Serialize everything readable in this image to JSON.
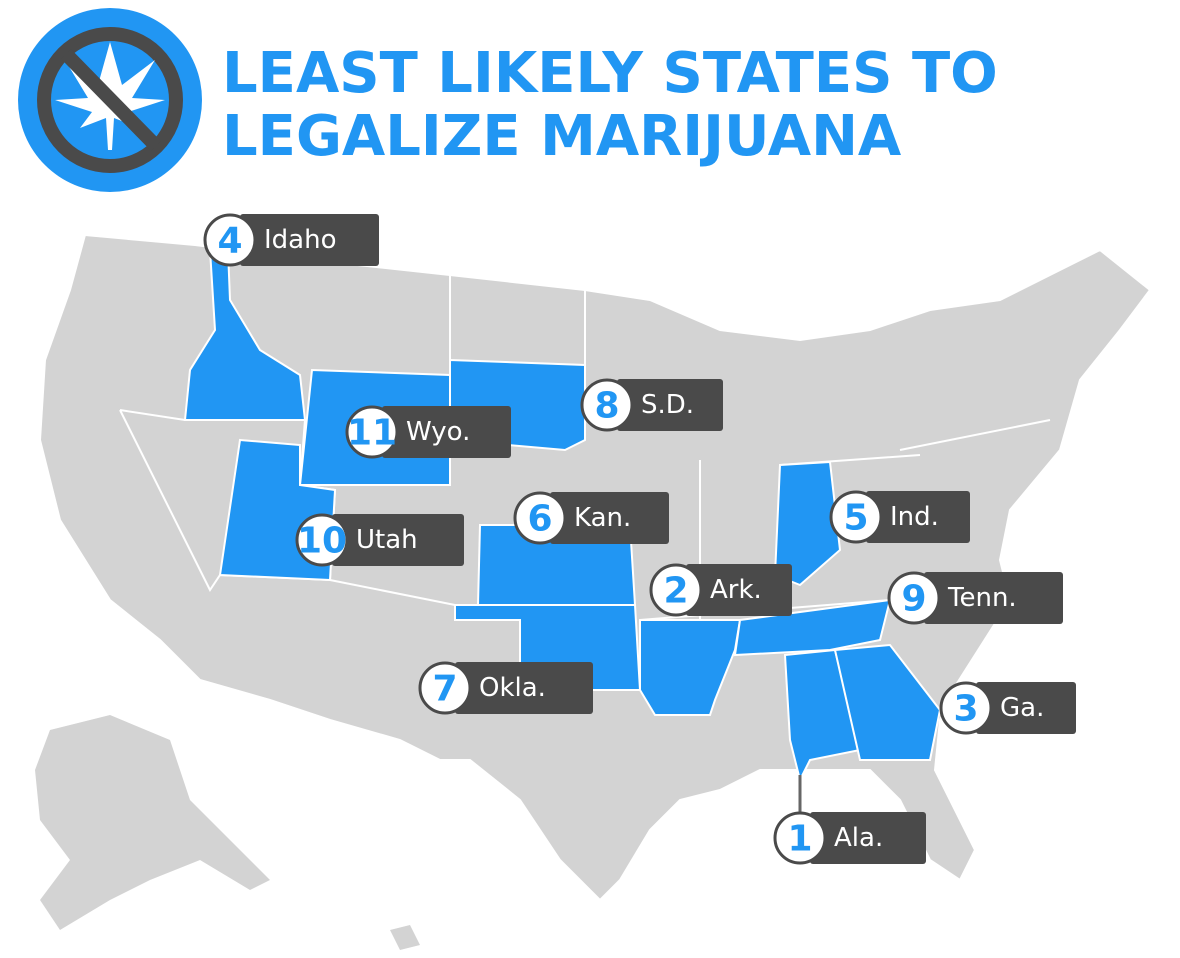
{
  "header": {
    "title_lines": [
      "LEAST LIKELY STATES TO",
      "LEGALIZE MARIJUANA"
    ]
  },
  "markers": [
    {
      "rank": 4,
      "label": "Idaho"
    },
    {
      "rank": 11,
      "label": "Wyo."
    },
    {
      "rank": 8,
      "label": "S.D."
    },
    {
      "rank": 6,
      "label": "Kan."
    },
    {
      "rank": 10,
      "label": "Utah"
    },
    {
      "rank": 2,
      "label": "Ark."
    },
    {
      "rank": 5,
      "label": "Ind."
    },
    {
      "rank": 9,
      "label": "Tenn."
    },
    {
      "rank": 7,
      "label": "Okla."
    },
    {
      "rank": 3,
      "label": "Ga."
    },
    {
      "rank": 1,
      "label": "Ala."
    }
  ]
}
